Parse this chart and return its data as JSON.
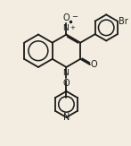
{
  "background_color": "#f2ede0",
  "line_color": "#1a1a1a",
  "line_width": 1.3,
  "text_color": "#1a1a1a",
  "font_size": 6.5,
  "figsize": [
    1.47,
    1.63
  ],
  "dpi": 100,
  "xlim": [
    0,
    10
  ],
  "ylim": [
    0,
    11
  ]
}
